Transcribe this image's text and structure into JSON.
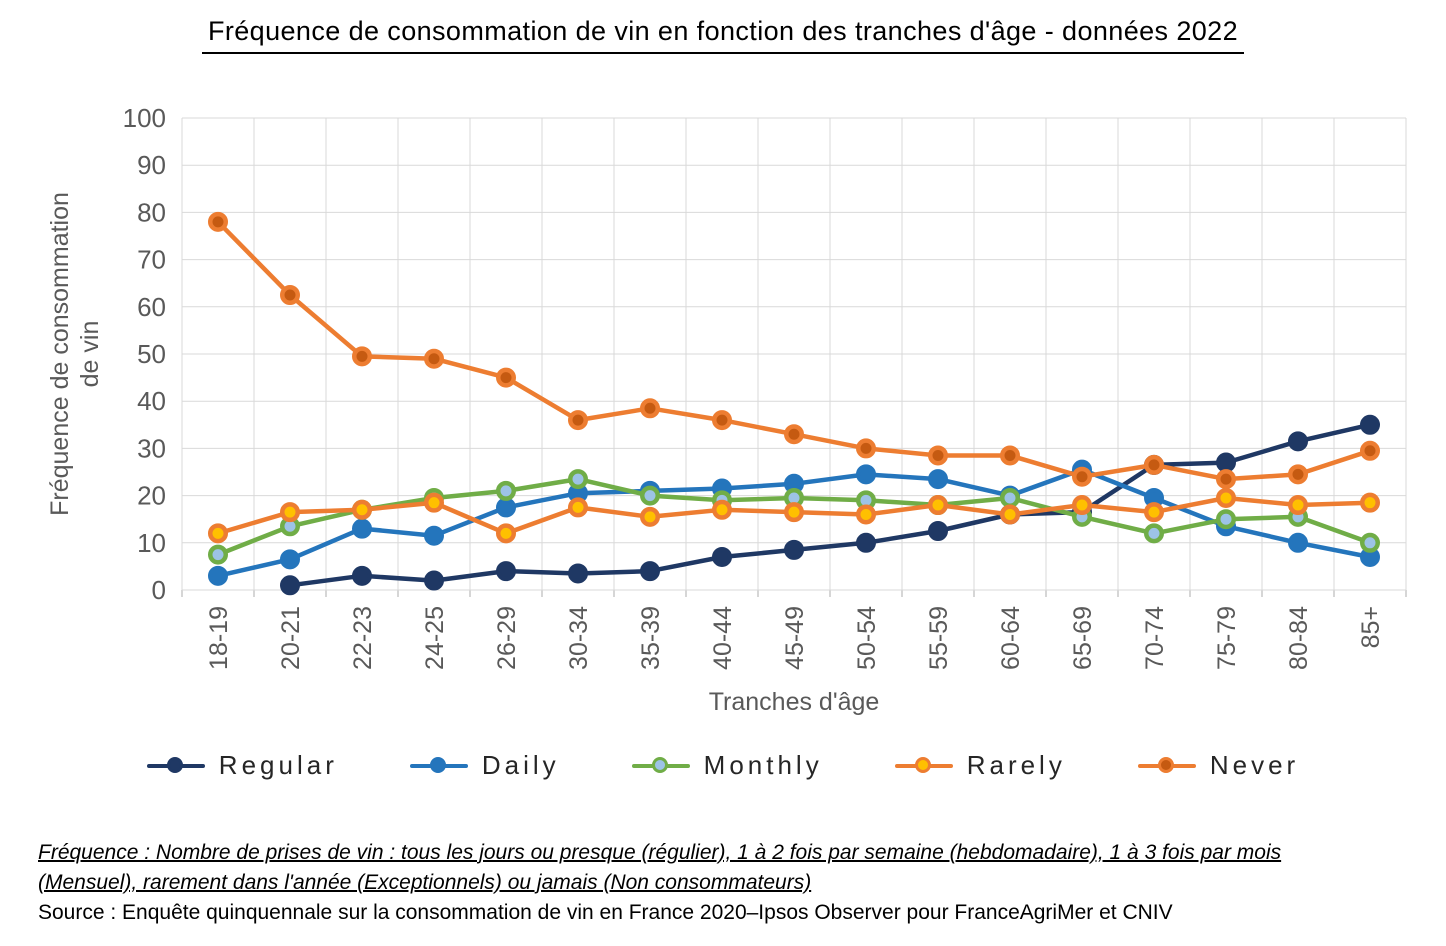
{
  "title": "Fréquence de consommation de vin en fonction des tranches d'âge - données 2022",
  "chart_data": {
    "type": "line",
    "title": "Fréquence de consommation de vin en fonction des tranches d'âge - données 2022",
    "categories": [
      "18-19",
      "20-21",
      "22-23",
      "24-25",
      "26-29",
      "30-34",
      "35-39",
      "40-44",
      "45-49",
      "50-54",
      "55-59",
      "60-64",
      "65-69",
      "70-74",
      "75-79",
      "80-84",
      "85+"
    ],
    "series": [
      {
        "name": "Regular",
        "line_color": "#1F3864",
        "marker_fill": "#1F3864",
        "marker_ring": "#1F3864",
        "values": [
          null,
          1,
          3,
          2,
          4,
          3.5,
          4,
          7,
          8.5,
          10,
          12.5,
          16,
          16.5,
          26.5,
          27,
          31.5,
          35
        ]
      },
      {
        "name": "Daily",
        "line_color": "#2475BC",
        "marker_fill": "#2475BC",
        "marker_ring": "#2475BC",
        "values": [
          3,
          6.5,
          13,
          11.5,
          17.5,
          20.5,
          21,
          21.5,
          22.5,
          24.5,
          23.5,
          20,
          25.5,
          19.5,
          13.5,
          10,
          7
        ]
      },
      {
        "name": "Monthly",
        "line_color": "#70AD47",
        "marker_fill": "#9DC3E6",
        "marker_ring": "#70AD47",
        "values": [
          7.5,
          13.5,
          17,
          19.5,
          21,
          23.5,
          20,
          19,
          19.5,
          19,
          18,
          19.5,
          15.5,
          12,
          15,
          15.5,
          10
        ]
      },
      {
        "name": "Rarely",
        "line_color": "#ED7D31",
        "marker_fill": "#FFC000",
        "marker_ring": "#ED7D31",
        "values": [
          12,
          16.5,
          17,
          18.5,
          12,
          17.5,
          15.5,
          17,
          16.5,
          16,
          18,
          16,
          18,
          16.5,
          19.5,
          18,
          18.5
        ]
      },
      {
        "name": "Never",
        "line_color": "#ED7D31",
        "marker_fill": "#C55A11",
        "marker_ring": "#ED7D31",
        "values": [
          78,
          62.5,
          49.5,
          49,
          45,
          36,
          38.5,
          36,
          33,
          30,
          28.5,
          28.5,
          24,
          26.5,
          23.5,
          24.5,
          29.5
        ]
      }
    ],
    "xlabel": "Tranches d'âge",
    "ylabel_line1": "Fréquence de consommation",
    "ylabel_line2": "de vin",
    "ylim": [
      0,
      100
    ],
    "ytick_step": 10,
    "grid": true,
    "legend_position": "bottom",
    "grid_color": "#D9D9D9",
    "tick_color": "#ADADAD",
    "axis_text_color": "#595959"
  },
  "footnotes": {
    "definition_line1": "Fréquence : Nombre de prises de vin : tous les jours ou presque (régulier), 1 à 2 fois par semaine (hebdomadaire), 1 à 3 fois par mois",
    "definition_line2": "(Mensuel), rarement dans l'année (Exceptionnels) ou jamais (Non consommateurs)",
    "source": "Source : Enquête quinquennale sur la consommation de vin en France 2020–Ipsos Observer pour FranceAgriMer et CNIV"
  }
}
